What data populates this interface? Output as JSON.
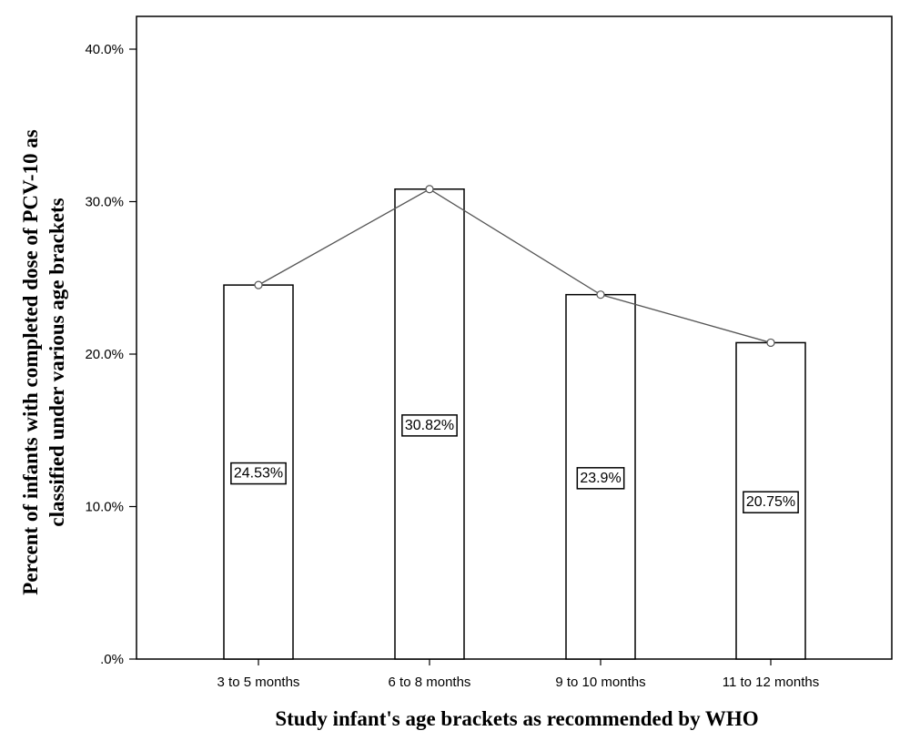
{
  "chart_data": {
    "type": "bar",
    "categories": [
      "3 to 5 months",
      "6 to 8 months",
      "9 to 10 months",
      "11 to 12 months"
    ],
    "values": [
      24.53,
      30.82,
      23.9,
      20.75
    ],
    "data_labels": [
      "24.53%",
      "30.82%",
      "23.9%",
      "20.75%"
    ],
    "overlay_line": true,
    "xlabel": "Study infant's age brackets as recommended by WHO",
    "ylabel_line1": "Percent of infants with completed dose of PCV-10 as",
    "ylabel_line2": "classified under various age brackets",
    "ylim": [
      0,
      40
    ],
    "yticks": [
      0,
      10,
      20,
      30,
      40
    ],
    "ytick_labels": [
      ".0%",
      "10.0%",
      "20.0%",
      "30.0%",
      "40.0%"
    ],
    "grid": false,
    "colors": {
      "bar_fill": "#ffffff",
      "bar_stroke": "#000000",
      "line": "#555555",
      "frame": "#000000"
    }
  }
}
